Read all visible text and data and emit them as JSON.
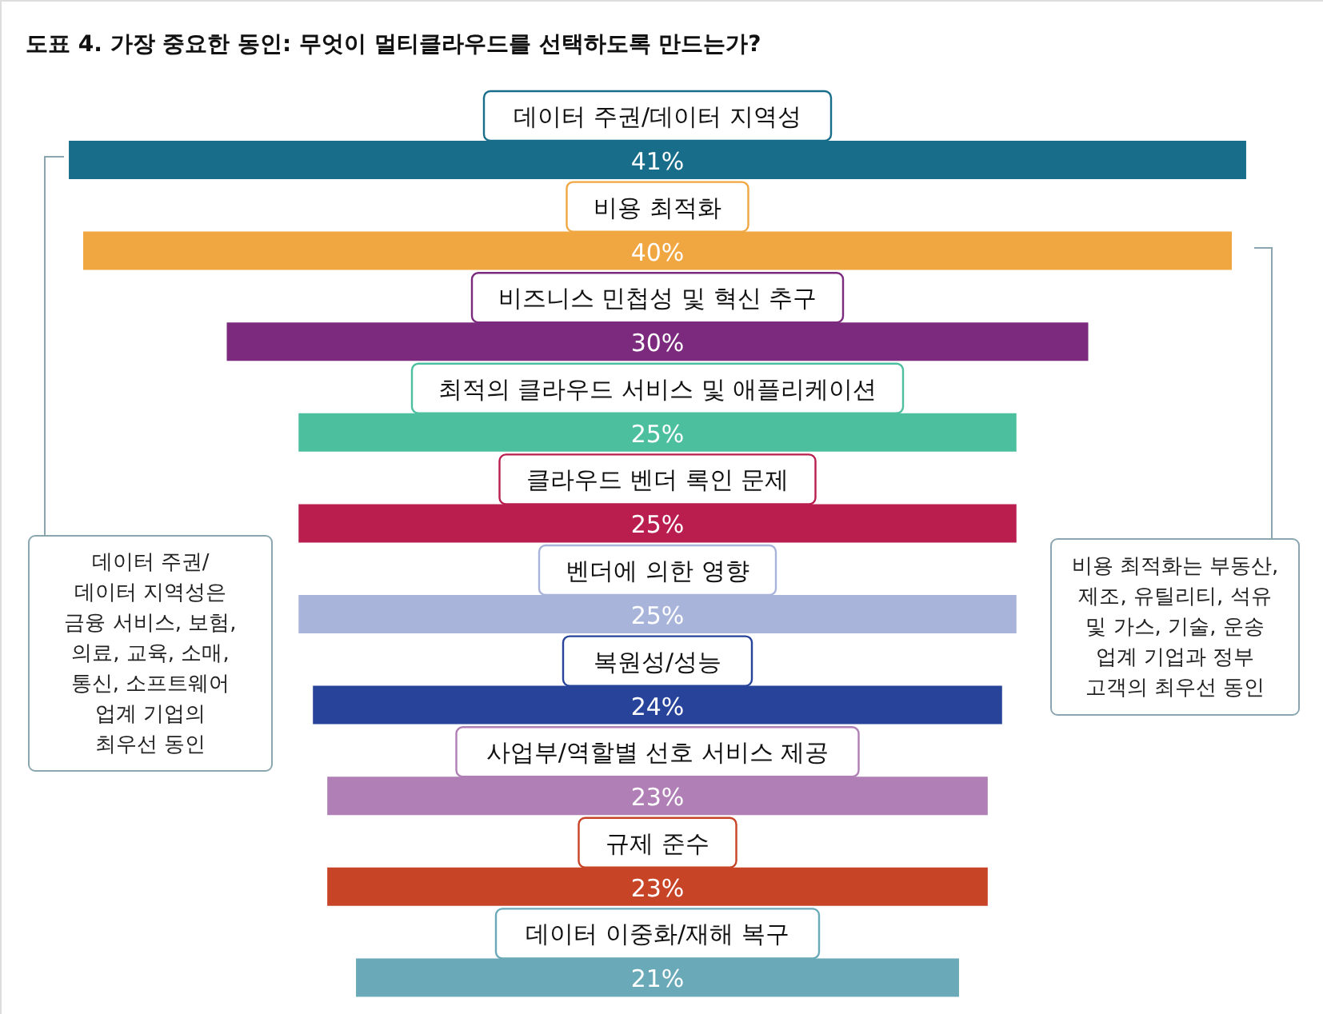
{
  "chart_data": {
    "type": "other",
    "title": "도표 4. 가장 중요한 동인: 무엇이 멀티클라우드를 선택하도록 만드는가?",
    "categories": [
      "데이터 주권/데이터 지역성",
      "비용 최적화",
      "비즈니스 민첩성 및 혁신 추구",
      "최적의 클라우드 서비스 및 애플리케이션",
      "클라우드 벤더 록인 문제",
      "벤더에 의한 영향",
      "복원성/성능",
      "사업부/역할별 선호 서비스 제공",
      "규제 준수",
      "데이터 이중화/재해 복구"
    ],
    "values": [
      41,
      40,
      30,
      25,
      25,
      25,
      24,
      23,
      23,
      21
    ],
    "value_labels": [
      "41%",
      "40%",
      "30%",
      "25%",
      "25%",
      "25%",
      "24%",
      "23%",
      "23%",
      "21%"
    ],
    "colors": [
      "#176d8a",
      "#f0a742",
      "#7b2a7e",
      "#4cbf9f",
      "#b91e4f",
      "#a9b4da",
      "#27449a",
      "#b07fb6",
      "#c84427",
      "#6aaab8"
    ],
    "annotations": [
      "데이터 주권/\n데이터 지역성은\n금융 서비스, 보험,\n의료, 교육, 소매,\n통신, 소프트웨어\n업계 기업의\n최우선 동인",
      "비용 최적화는 부동산,\n제조, 유틸리티, 석유\n및 가스, 기술, 운송\n업계 기업과 정부\n고객의 최우선 동인"
    ]
  }
}
